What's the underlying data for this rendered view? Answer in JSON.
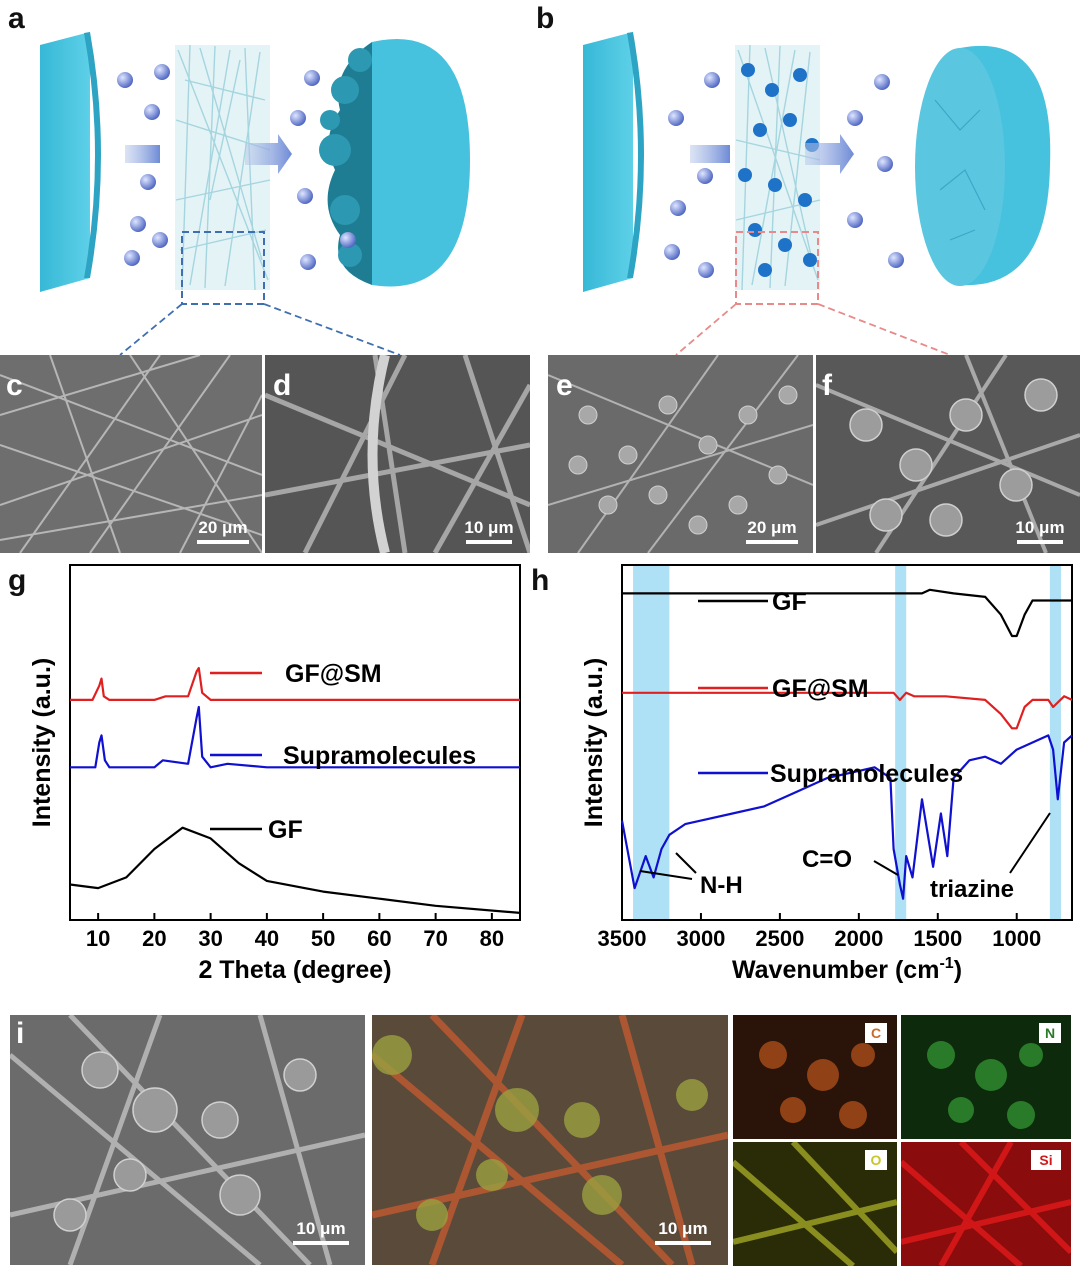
{
  "panels": {
    "a": "a",
    "b": "b",
    "c": "c",
    "d": "d",
    "e": "e",
    "f": "f",
    "g": "g",
    "h": "h",
    "i": "i"
  },
  "scalebars": {
    "c": "20 μm",
    "d": "10 μm",
    "e": "20 μm",
    "f": "10 μm",
    "i_sem": "10 μm",
    "i_map": "10 μm"
  },
  "eds": {
    "c": "C",
    "n": "N",
    "o": "O",
    "si": "Si"
  },
  "colors": {
    "cyan": "#4ec3dd",
    "ion": "#6a7fd0",
    "red": "#e02020",
    "blue": "#1010d0",
    "black": "#000000",
    "highlight": "#aee0f6"
  },
  "chart_data": [
    {
      "type": "line",
      "panel": "g",
      "xlabel": "2 Theta (degree)",
      "ylabel": "Intensity (a.u.)",
      "xlim": [
        5,
        85
      ],
      "xticks": [
        10,
        20,
        30,
        40,
        50,
        60,
        70,
        80
      ],
      "series": [
        {
          "name": "GF@SM",
          "color": "#e02020",
          "x": [
            5,
            9,
            10.2,
            10.6,
            11,
            12,
            20,
            22,
            26,
            27.5,
            27.9,
            28.5,
            30,
            40,
            60,
            85
          ],
          "y": [
            0.62,
            0.62,
            0.66,
            0.68,
            0.63,
            0.62,
            0.62,
            0.63,
            0.63,
            0.7,
            0.71,
            0.64,
            0.62,
            0.62,
            0.62,
            0.62
          ]
        },
        {
          "name": "Supramolecules",
          "color": "#1010d0",
          "x": [
            5,
            9.5,
            10.2,
            10.6,
            11.2,
            12,
            20,
            21.5,
            26,
            27.5,
            27.9,
            28.5,
            30,
            33,
            40,
            60,
            85
          ],
          "y": [
            0.43,
            0.43,
            0.5,
            0.52,
            0.45,
            0.43,
            0.43,
            0.45,
            0.44,
            0.57,
            0.6,
            0.46,
            0.43,
            0.44,
            0.43,
            0.43,
            0.43
          ]
        },
        {
          "name": "GF",
          "color": "#000000",
          "x": [
            5,
            10,
            15,
            20,
            25,
            30,
            35,
            40,
            50,
            60,
            70,
            85
          ],
          "y": [
            0.1,
            0.09,
            0.12,
            0.2,
            0.26,
            0.23,
            0.16,
            0.11,
            0.08,
            0.06,
            0.04,
            0.02
          ]
        }
      ]
    },
    {
      "type": "line",
      "panel": "h",
      "xlabel": "Wavenumber (cm",
      "xlabel_sup": "-1",
      "xlabel_end": ")",
      "ylabel": "Intensity (a.u.)",
      "xlim": [
        3500,
        650
      ],
      "xticks": [
        3500,
        3000,
        2500,
        2000,
        1500,
        1000
      ],
      "annotations": [
        "N-H",
        "C=O",
        "triazine"
      ],
      "highlight_bands": [
        [
          3430,
          3200
        ],
        [
          1770,
          1700
        ],
        [
          790,
          720
        ]
      ],
      "series": [
        {
          "name": "GF",
          "color": "#000000",
          "x": [
            3500,
            2000,
            1600,
            1550,
            1400,
            1200,
            1100,
            1030,
            1000,
            950,
            900,
            800,
            650
          ],
          "y": [
            0.92,
            0.92,
            0.92,
            0.93,
            0.92,
            0.91,
            0.86,
            0.8,
            0.8,
            0.86,
            0.9,
            0.9,
            0.9
          ]
        },
        {
          "name": "GF@SM",
          "color": "#e02020",
          "x": [
            3500,
            2000,
            1780,
            1740,
            1700,
            1650,
            1550,
            1450,
            1200,
            1100,
            1030,
            1000,
            950,
            900,
            800,
            770,
            700,
            650
          ],
          "y": [
            0.64,
            0.64,
            0.64,
            0.62,
            0.64,
            0.63,
            0.63,
            0.63,
            0.62,
            0.58,
            0.54,
            0.54,
            0.6,
            0.62,
            0.62,
            0.6,
            0.63,
            0.62
          ]
        },
        {
          "name": "Supramolecules",
          "color": "#1010d0",
          "x": [
            3500,
            3420,
            3350,
            3300,
            3250,
            3200,
            3100,
            3000,
            2800,
            2600,
            2400,
            2200,
            2000,
            1900,
            1800,
            1780,
            1740,
            1720,
            1700,
            1660,
            1600,
            1530,
            1480,
            1440,
            1400,
            1300,
            1200,
            1100,
            1000,
            900,
            800,
            770,
            740,
            700,
            650
          ],
          "y": [
            0.28,
            0.09,
            0.18,
            0.12,
            0.2,
            0.24,
            0.27,
            0.28,
            0.3,
            0.32,
            0.36,
            0.4,
            0.42,
            0.43,
            0.4,
            0.2,
            0.1,
            0.06,
            0.18,
            0.12,
            0.34,
            0.15,
            0.3,
            0.18,
            0.4,
            0.45,
            0.46,
            0.44,
            0.48,
            0.5,
            0.52,
            0.48,
            0.34,
            0.5,
            0.52
          ]
        }
      ]
    }
  ]
}
